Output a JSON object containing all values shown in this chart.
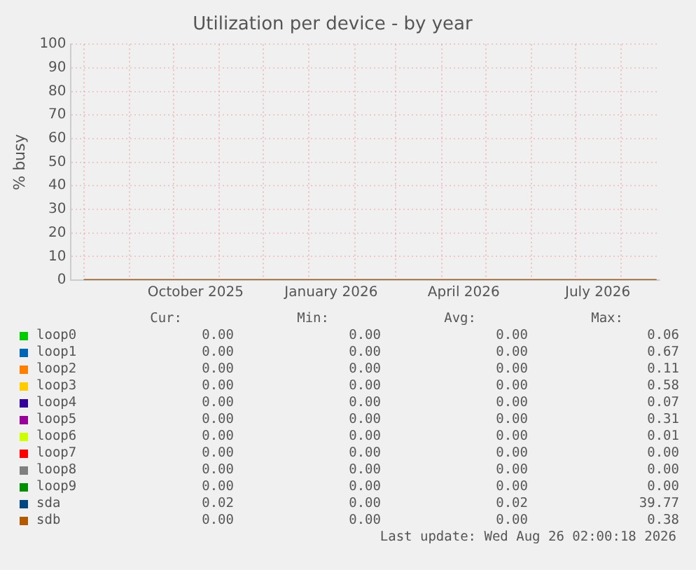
{
  "chart_data": {
    "type": "line",
    "title": "Utilization per device - by year",
    "ylabel": "% busy",
    "x": [
      "2025-08-01",
      "2025-10-01",
      "2025-12-01",
      "2026-02-01",
      "2026-04-01",
      "2026-06-01",
      "2026-08-25"
    ],
    "xlim": [
      "2025-07-23",
      "2026-08-27"
    ],
    "xticks": [
      {
        "value": "2025-08-01",
        "label": null
      },
      {
        "value": "2025-09-01",
        "label": null
      },
      {
        "value": "2025-10-01",
        "label": null
      },
      {
        "value": "2025-10-16",
        "label": "October 2025"
      },
      {
        "value": "2025-11-01",
        "label": null
      },
      {
        "value": "2025-12-01",
        "label": null
      },
      {
        "value": "2026-01-01",
        "label": null
      },
      {
        "value": "2026-01-16",
        "label": "January 2026"
      },
      {
        "value": "2026-02-01",
        "label": null
      },
      {
        "value": "2026-03-01",
        "label": null
      },
      {
        "value": "2026-04-01",
        "label": null
      },
      {
        "value": "2026-04-16",
        "label": "April 2026"
      },
      {
        "value": "2026-05-01",
        "label": null
      },
      {
        "value": "2026-06-01",
        "label": null
      },
      {
        "value": "2026-07-01",
        "label": null
      },
      {
        "value": "2026-07-16",
        "label": "July 2026"
      },
      {
        "value": "2026-08-01",
        "label": null
      }
    ],
    "ylim": [
      0,
      100
    ],
    "yticks": [
      0,
      10,
      20,
      30,
      40,
      50,
      60,
      70,
      80,
      90,
      100
    ],
    "grid": true,
    "legend": "bottom",
    "marker": "none",
    "line_style": "solid",
    "series": [
      {
        "name": "loop0",
        "color": "#00cc00",
        "values": [
          null,
          null,
          null,
          null,
          null,
          null,
          null
        ]
      },
      {
        "name": "loop1",
        "color": "#0066b3",
        "values": [
          null,
          null,
          null,
          null,
          null,
          null,
          null
        ]
      },
      {
        "name": "loop2",
        "color": "#ff8000",
        "values": [
          null,
          null,
          null,
          null,
          null,
          null,
          null
        ]
      },
      {
        "name": "loop3",
        "color": "#ffcc00",
        "values": [
          null,
          null,
          null,
          null,
          null,
          null,
          null
        ]
      },
      {
        "name": "loop4",
        "color": "#330099",
        "values": [
          null,
          null,
          null,
          null,
          null,
          null,
          null
        ]
      },
      {
        "name": "loop5",
        "color": "#990099",
        "values": [
          null,
          null,
          null,
          null,
          null,
          null,
          null
        ]
      },
      {
        "name": "loop6",
        "color": "#ccff00",
        "values": [
          null,
          null,
          null,
          null,
          null,
          null,
          null
        ]
      },
      {
        "name": "loop7",
        "color": "#ff0000",
        "values": [
          null,
          null,
          null,
          null,
          null,
          null,
          null
        ]
      },
      {
        "name": "loop8",
        "color": "#808080",
        "values": [
          null,
          null,
          null,
          null,
          null,
          null,
          null
        ]
      },
      {
        "name": "loop9",
        "color": "#008f00",
        "values": [
          null,
          null,
          null,
          null,
          null,
          null,
          null
        ]
      },
      {
        "name": "sda",
        "color": "#00487d",
        "values": [
          null,
          null,
          null,
          null,
          null,
          null,
          null
        ]
      },
      {
        "name": "sdb",
        "color": "#b35a00",
        "values": [
          0,
          0,
          0,
          0,
          0,
          0,
          0
        ]
      }
    ],
    "annotations": [
      "Cur:",
      "Min:",
      "Avg:",
      "Max:",
      "0.00",
      "0.00",
      "0.00",
      "0.06",
      "0.00",
      "0.00",
      "0.00",
      "0.67",
      "0.00",
      "0.00",
      "0.00",
      "0.11",
      "0.00",
      "0.00",
      "0.00",
      "0.58",
      "0.00",
      "0.00",
      "0.00",
      "0.07",
      "0.00",
      "0.00",
      "0.00",
      "0.31",
      "0.00",
      "0.00",
      "0.00",
      "0.01",
      "0.00",
      "0.00",
      "0.00",
      "0.00",
      "0.00",
      "0.00",
      "0.00",
      "0.00",
      "0.00",
      "0.00",
      "0.00",
      "0.00",
      "0.02",
      "0.00",
      "0.02",
      "39.77",
      "0.00",
      "0.00",
      "0.00",
      "0.38",
      "Last update: Wed Aug 26 02:00:18 2026"
    ]
  }
}
